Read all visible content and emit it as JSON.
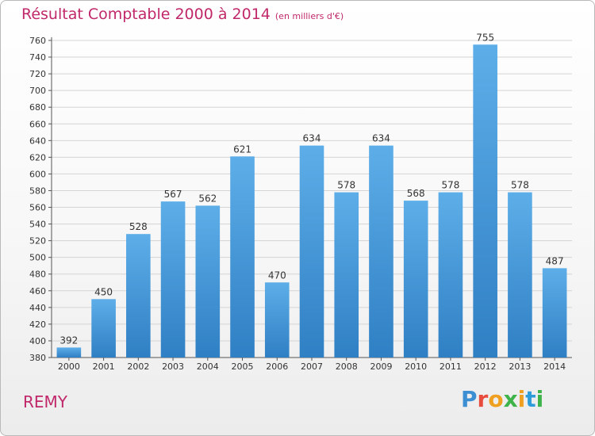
{
  "header": {
    "title": "Résultat Comptable 2000 à 2014",
    "unit": "(en milliers d'€)"
  },
  "footer": {
    "commune": "REMY",
    "logo": "Proxiti"
  },
  "colors": {
    "accent": "#c0286a",
    "bar_light": "#5daee8",
    "bar_dark": "#2f7fc4",
    "logo_letters": [
      "#3d8fd4",
      "#e84c3d",
      "#f0a020",
      "#3db34a",
      "#f0a020",
      "#2e9cd8",
      "#3db34a"
    ]
  },
  "chart_data": {
    "type": "bar",
    "title": "Résultat Comptable 2000 à 2014",
    "subtitle": "(en milliers d'€)",
    "xlabel": "",
    "ylabel": "",
    "categories": [
      "2000",
      "2001",
      "2002",
      "2003",
      "2004",
      "2005",
      "2006",
      "2007",
      "2008",
      "2009",
      "2010",
      "2011",
      "2012",
      "2013",
      "2014"
    ],
    "values": [
      392,
      450,
      528,
      567,
      562,
      621,
      470,
      634,
      578,
      634,
      568,
      578,
      755,
      578,
      487
    ],
    "ylim": [
      380,
      760
    ],
    "yticks": [
      380,
      400,
      420,
      440,
      460,
      480,
      500,
      520,
      540,
      560,
      580,
      600,
      620,
      640,
      660,
      680,
      700,
      720,
      740,
      760
    ],
    "grid": true,
    "legend": "none"
  }
}
